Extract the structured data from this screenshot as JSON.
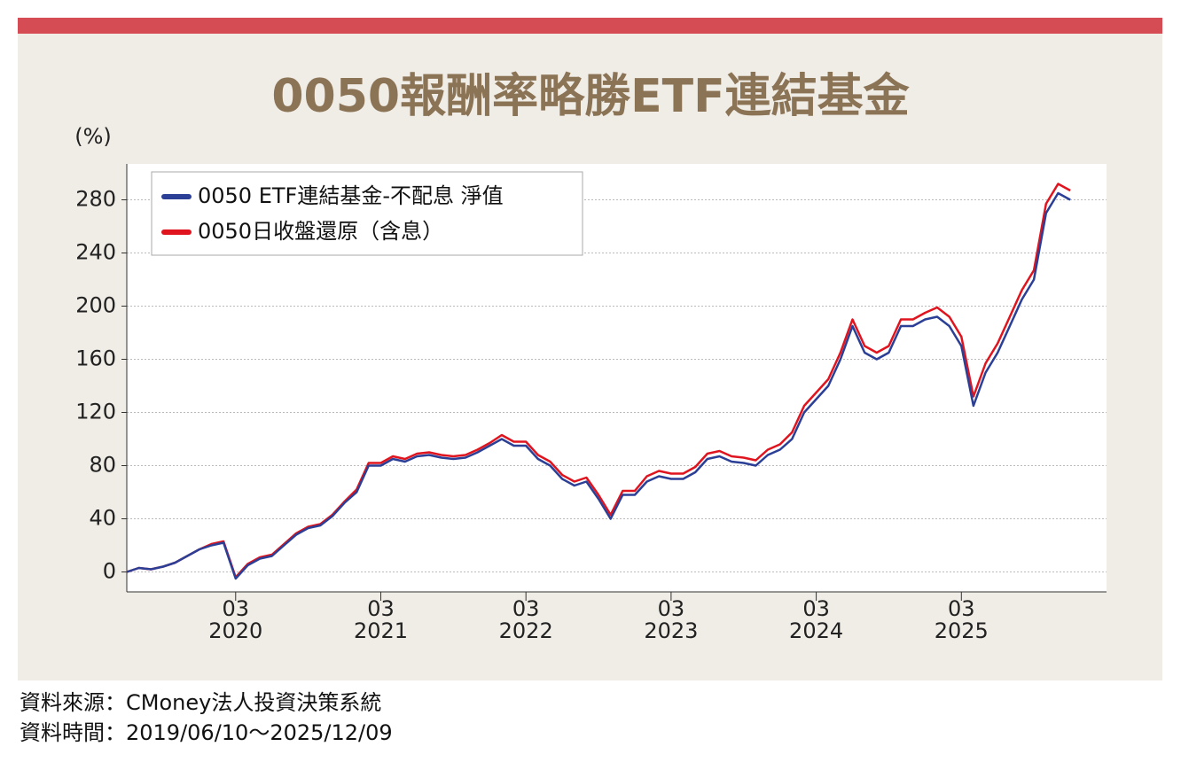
{
  "chart_data": {
    "type": "line",
    "title": "0050報酬率略勝ETF連結基金",
    "y_label": "(%)",
    "source": "資料來源：CMoney法人投資決策系統",
    "period": "資料時間：2019/06/10～2025/12/09",
    "x": [
      "2019-06",
      "2019-07",
      "2019-08",
      "2019-09",
      "2019-10",
      "2019-11",
      "2019-12",
      "2020-01",
      "2020-02",
      "2020-03",
      "2020-04",
      "2020-05",
      "2020-06",
      "2020-07",
      "2020-08",
      "2020-09",
      "2020-10",
      "2020-11",
      "2020-12",
      "2021-01",
      "2021-02",
      "2021-03",
      "2021-04",
      "2021-05",
      "2021-06",
      "2021-07",
      "2021-08",
      "2021-09",
      "2021-10",
      "2021-11",
      "2021-12",
      "2022-01",
      "2022-02",
      "2022-03",
      "2022-04",
      "2022-05",
      "2022-06",
      "2022-07",
      "2022-08",
      "2022-09",
      "2022-10",
      "2022-11",
      "2022-12",
      "2023-01",
      "2023-02",
      "2023-03",
      "2023-04",
      "2023-05",
      "2023-06",
      "2023-07",
      "2023-08",
      "2023-09",
      "2023-10",
      "2023-11",
      "2023-12",
      "2024-01",
      "2024-02",
      "2024-03",
      "2024-04",
      "2024-05",
      "2024-06",
      "2024-07",
      "2024-08",
      "2024-09",
      "2024-10",
      "2024-11",
      "2024-12",
      "2025-01",
      "2025-02",
      "2025-03",
      "2025-04",
      "2025-05",
      "2025-06",
      "2025-07",
      "2025-08",
      "2025-09",
      "2025-10",
      "2025-11",
      "2025-12"
    ],
    "series": [
      {
        "name": "0050 ETF連結基金-不配息 淨值",
        "color": "#2b3f96",
        "values": [
          0,
          3,
          2,
          4,
          7,
          12,
          17,
          20,
          22,
          -5,
          5,
          10,
          12,
          20,
          28,
          33,
          35,
          42,
          52,
          60,
          80,
          80,
          85,
          83,
          87,
          88,
          86,
          85,
          86,
          90,
          95,
          100,
          95,
          95,
          85,
          80,
          70,
          65,
          68,
          55,
          40,
          58,
          58,
          68,
          72,
          70,
          70,
          75,
          85,
          87,
          83,
          82,
          80,
          88,
          92,
          100,
          120,
          130,
          140,
          160,
          185,
          165,
          160,
          165,
          185,
          185,
          190,
          192,
          185,
          170,
          125,
          150,
          165,
          185,
          205,
          220,
          270,
          285,
          280
        ]
      },
      {
        "name": "0050日收盤還原（含息）",
        "color": "#e0141e",
        "values": [
          0,
          3,
          2,
          4,
          7,
          12,
          17,
          21,
          23,
          -4,
          6,
          11,
          13,
          21,
          29,
          34,
          36,
          43,
          53,
          62,
          82,
          82,
          87,
          85,
          89,
          90,
          88,
          87,
          88,
          92,
          97,
          103,
          98,
          98,
          88,
          83,
          73,
          68,
          71,
          58,
          43,
          61,
          61,
          72,
          76,
          74,
          74,
          79,
          89,
          91,
          87,
          86,
          84,
          92,
          96,
          105,
          125,
          135,
          145,
          165,
          190,
          170,
          165,
          170,
          190,
          190,
          195,
          199,
          192,
          177,
          132,
          157,
          172,
          192,
          212,
          227,
          277,
          292,
          287
        ]
      }
    ],
    "xlim": [
      "2019-06",
      "2026-03"
    ],
    "xticks": [
      {
        "value": "2020-03",
        "label": "03\n2020"
      },
      {
        "value": "2021-03",
        "label": "03\n2021"
      },
      {
        "value": "2022-03",
        "label": "03\n2022"
      },
      {
        "value": "2023-03",
        "label": "03\n2023"
      },
      {
        "value": "2024-03",
        "label": "03\n2024"
      },
      {
        "value": "2025-03",
        "label": "03\n2025"
      }
    ],
    "ylim": [
      -15,
      307
    ],
    "yticks": [
      0,
      40,
      80,
      120,
      160,
      200,
      240,
      280
    ],
    "grid": true,
    "legend": "upper left"
  }
}
